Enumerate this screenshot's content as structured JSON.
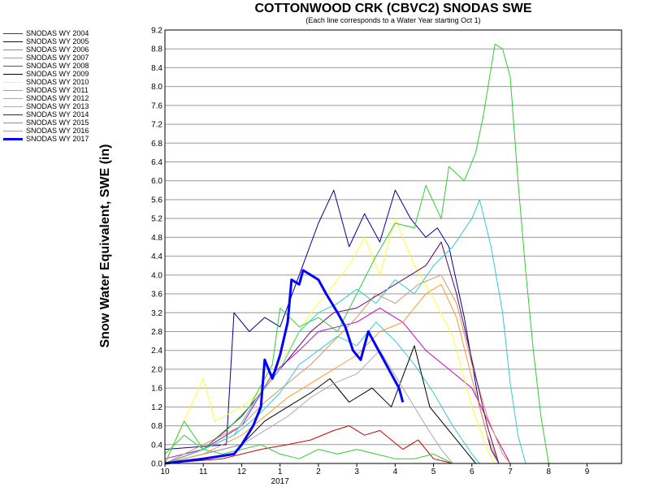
{
  "chart_data": {
    "type": "line",
    "title": "COTTONWOOD CRK (CBVC2) SNODAS SWE",
    "subtitle": "(Each line corresponds to a Water Year starting Oct 1)",
    "ylabel": "Snow Water Equivalent, SWE (in)",
    "xlabel": "",
    "year_label": "2017",
    "ylim": [
      0,
      9.2
    ],
    "xlim": [
      10,
      21.9
    ],
    "yticks": [
      "0.0",
      "0.4",
      "0.8",
      "1.2",
      "1.6",
      "2.0",
      "2.4",
      "2.8",
      "3.2",
      "3.6",
      "4.0",
      "4.4",
      "4.8",
      "5.2",
      "5.6",
      "6.0",
      "6.4",
      "6.8",
      "7.2",
      "7.6",
      "8.0",
      "8.4",
      "8.8",
      "9.2"
    ],
    "xticks": [
      "10",
      "11",
      "12",
      "1",
      "2",
      "3",
      "4",
      "5",
      "6",
      "7",
      "8",
      "9"
    ],
    "grid": true,
    "legend_position": "left",
    "series": [
      {
        "name": "SNODAS WY 2004",
        "color": "#cc0000",
        "width": 1,
        "points": [
          [
            10,
            0
          ],
          [
            11.5,
            0.1
          ],
          [
            12.5,
            0.3
          ],
          [
            13.2,
            0.4
          ],
          [
            13.8,
            0.5
          ],
          [
            14.4,
            0.7
          ],
          [
            14.8,
            0.8
          ],
          [
            15.2,
            0.6
          ],
          [
            15.6,
            0.7
          ],
          [
            16.2,
            0.3
          ],
          [
            16.6,
            0.5
          ],
          [
            17,
            0.1
          ],
          [
            17.5,
            0
          ]
        ]
      },
      {
        "name": "SNODAS WY 2005",
        "color": "#000099",
        "width": 1,
        "points": [
          [
            10,
            0.3
          ],
          [
            11.6,
            0.4
          ],
          [
            11.8,
            3.2
          ],
          [
            12.2,
            2.8
          ],
          [
            12.6,
            3.1
          ],
          [
            13,
            2.9
          ],
          [
            13.5,
            4.0
          ],
          [
            14,
            5.1
          ],
          [
            14.4,
            5.8
          ],
          [
            14.8,
            4.6
          ],
          [
            15.2,
            5.3
          ],
          [
            15.6,
            4.7
          ],
          [
            16,
            5.8
          ],
          [
            16.4,
            5.2
          ],
          [
            16.8,
            4.8
          ],
          [
            17.1,
            5.0
          ],
          [
            17.4,
            4.6
          ],
          [
            17.8,
            3.1
          ],
          [
            18.2,
            1.2
          ],
          [
            18.5,
            0.3
          ],
          [
            18.7,
            0
          ]
        ]
      },
      {
        "name": "SNODAS WY 2006",
        "color": "#33cc33",
        "width": 1,
        "points": [
          [
            10,
            0.2
          ],
          [
            10.5,
            0.6
          ],
          [
            11,
            0.3
          ],
          [
            11.5,
            0.2
          ],
          [
            12,
            0.3
          ],
          [
            12.5,
            0.4
          ],
          [
            13,
            0.2
          ],
          [
            13.5,
            0.1
          ],
          [
            14,
            0.3
          ],
          [
            14.5,
            0.2
          ],
          [
            15,
            0.3
          ],
          [
            15.5,
            0.2
          ],
          [
            16,
            0.1
          ],
          [
            16.5,
            0.1
          ],
          [
            17,
            0.2
          ],
          [
            17.5,
            0
          ]
        ]
      },
      {
        "name": "SNODAS WY 2007",
        "color": "#33cccc",
        "width": 1,
        "points": [
          [
            10,
            0
          ],
          [
            11,
            0.3
          ],
          [
            11.8,
            0.6
          ],
          [
            12.4,
            1.0
          ],
          [
            13,
            1.5
          ],
          [
            13.5,
            2.1
          ],
          [
            14,
            2.4
          ],
          [
            14.5,
            2.7
          ],
          [
            15,
            2.5
          ],
          [
            15.5,
            3.0
          ],
          [
            16,
            2.6
          ],
          [
            16.5,
            2.1
          ],
          [
            17,
            1.5
          ],
          [
            17.5,
            0.8
          ],
          [
            18,
            0.2
          ],
          [
            18.2,
            0
          ]
        ]
      },
      {
        "name": "SNODAS WY 2008",
        "color": "#cc00cc",
        "width": 1,
        "points": [
          [
            10,
            0.1
          ],
          [
            11,
            0.3
          ],
          [
            12,
            0.8
          ],
          [
            12.8,
            1.9
          ],
          [
            13.5,
            2.4
          ],
          [
            14,
            2.8
          ],
          [
            14.5,
            2.9
          ],
          [
            15,
            3.0
          ],
          [
            15.6,
            3.3
          ],
          [
            16.2,
            3.0
          ],
          [
            16.8,
            2.4
          ],
          [
            17.4,
            2.0
          ],
          [
            18,
            1.6
          ],
          [
            18.6,
            0.6
          ],
          [
            19,
            0
          ]
        ]
      },
      {
        "name": "SNODAS WY 2009",
        "color": "#000000",
        "width": 1,
        "points": [
          [
            10,
            0
          ],
          [
            11,
            0.2
          ],
          [
            12,
            0.4
          ],
          [
            12.6,
            0.9
          ],
          [
            13.2,
            1.2
          ],
          [
            13.8,
            1.5
          ],
          [
            14.3,
            1.8
          ],
          [
            14.8,
            1.3
          ],
          [
            15.4,
            1.6
          ],
          [
            15.9,
            1.2
          ],
          [
            16.5,
            2.5
          ],
          [
            16.9,
            1.2
          ],
          [
            17.3,
            0.8
          ],
          [
            17.8,
            0.3
          ],
          [
            18.1,
            0
          ]
        ]
      },
      {
        "name": "SNODAS WY 2010",
        "color": "#ffff33",
        "width": 1,
        "points": [
          [
            10,
            0
          ],
          [
            11,
            1.8
          ],
          [
            11.3,
            0.9
          ],
          [
            12,
            1.2
          ],
          [
            12.6,
            1.6
          ],
          [
            13.2,
            2.4
          ],
          [
            13.8,
            3.2
          ],
          [
            14.4,
            3.8
          ],
          [
            14.8,
            4.2
          ],
          [
            15.2,
            4.8
          ],
          [
            15.6,
            4.0
          ],
          [
            16,
            5.2
          ],
          [
            16.5,
            4.2
          ],
          [
            17,
            3.5
          ],
          [
            17.5,
            2.7
          ],
          [
            18,
            1.2
          ],
          [
            18.4,
            0.3
          ],
          [
            18.6,
            0
          ]
        ]
      },
      {
        "name": "SNODAS WY 2011",
        "color": "#cc9966",
        "width": 1,
        "points": [
          [
            10,
            0
          ],
          [
            11,
            0.4
          ],
          [
            12,
            0.8
          ],
          [
            12.6,
            1.3
          ],
          [
            13.2,
            1.7
          ],
          [
            13.8,
            2.1
          ],
          [
            14.4,
            2.6
          ],
          [
            15,
            3.1
          ],
          [
            15.5,
            3.6
          ],
          [
            16,
            3.4
          ],
          [
            16.6,
            3.8
          ],
          [
            17.2,
            4.0
          ],
          [
            17.6,
            3.4
          ],
          [
            18,
            2.1
          ],
          [
            18.4,
            1.0
          ],
          [
            18.8,
            0.2
          ],
          [
            19,
            0
          ]
        ]
      },
      {
        "name": "SNODAS WY 2012",
        "color": "#aaaaaa",
        "width": 1,
        "points": [
          [
            10,
            0
          ],
          [
            11,
            0.2
          ],
          [
            12,
            0.4
          ],
          [
            12.6,
            0.7
          ],
          [
            13.2,
            1.0
          ],
          [
            13.8,
            1.4
          ],
          [
            14.4,
            1.7
          ],
          [
            15,
            1.9
          ],
          [
            15.6,
            2.4
          ],
          [
            16.2,
            1.6
          ],
          [
            16.8,
            0.8
          ],
          [
            17.2,
            0.3
          ],
          [
            17.5,
            0
          ]
        ]
      },
      {
        "name": "SNODAS WY 2013",
        "color": "#ff9933",
        "width": 1,
        "points": [
          [
            10,
            0
          ],
          [
            11,
            0.2
          ],
          [
            12,
            0.6
          ],
          [
            12.6,
            1.0
          ],
          [
            13.2,
            1.4
          ],
          [
            13.8,
            1.7
          ],
          [
            14.4,
            2.0
          ],
          [
            15,
            2.3
          ],
          [
            15.6,
            2.8
          ],
          [
            16.2,
            3.0
          ],
          [
            16.8,
            3.6
          ],
          [
            17.2,
            3.8
          ],
          [
            17.6,
            3.1
          ],
          [
            18,
            1.8
          ],
          [
            18.4,
            0.6
          ],
          [
            18.7,
            0
          ]
        ]
      },
      {
        "name": "SNODAS WY 2014",
        "color": "#660066",
        "width": 1,
        "points": [
          [
            10,
            0
          ],
          [
            11,
            0.3
          ],
          [
            12,
            1.0
          ],
          [
            12.6,
            1.6
          ],
          [
            13.2,
            2.2
          ],
          [
            13.8,
            2.8
          ],
          [
            14.4,
            3.2
          ],
          [
            15,
            3.3
          ],
          [
            15.6,
            3.6
          ],
          [
            16.2,
            3.9
          ],
          [
            16.8,
            4.2
          ],
          [
            17.2,
            4.7
          ],
          [
            17.6,
            3.6
          ],
          [
            18,
            2.2
          ],
          [
            18.4,
            0.8
          ],
          [
            18.7,
            0
          ]
        ]
      },
      {
        "name": "SNODAS WY 2015",
        "color": "#33cc33",
        "width": 1,
        "points": [
          [
            10,
            0
          ],
          [
            10.5,
            0.9
          ],
          [
            11,
            0.3
          ],
          [
            11.6,
            0.7
          ],
          [
            12.2,
            1.2
          ],
          [
            12.8,
            2.1
          ],
          [
            13,
            3.3
          ],
          [
            13.5,
            2.9
          ],
          [
            14,
            3.1
          ],
          [
            14.5,
            2.8
          ],
          [
            15,
            3.6
          ],
          [
            15.5,
            4.4
          ],
          [
            16,
            5.1
          ],
          [
            16.5,
            5.0
          ],
          [
            16.8,
            5.9
          ],
          [
            17.2,
            5.2
          ],
          [
            17.4,
            6.3
          ],
          [
            17.8,
            6.0
          ],
          [
            18.1,
            6.6
          ],
          [
            18.3,
            7.4
          ],
          [
            18.6,
            8.9
          ],
          [
            18.8,
            8.8
          ],
          [
            19,
            8.2
          ],
          [
            19.2,
            6.0
          ],
          [
            19.4,
            4.1
          ],
          [
            19.6,
            2.4
          ],
          [
            19.8,
            1.0
          ],
          [
            20,
            0
          ]
        ]
      },
      {
        "name": "SNODAS WY 2016",
        "color": "#33cccc",
        "width": 1,
        "points": [
          [
            10,
            0
          ],
          [
            11,
            0.3
          ],
          [
            11.8,
            0.6
          ],
          [
            12.4,
            1.4
          ],
          [
            13,
            2.0
          ],
          [
            13.5,
            2.8
          ],
          [
            14,
            3.2
          ],
          [
            14.5,
            3.4
          ],
          [
            15,
            3.7
          ],
          [
            15.5,
            3.4
          ],
          [
            16,
            3.9
          ],
          [
            16.5,
            3.6
          ],
          [
            17,
            4.2
          ],
          [
            17.5,
            4.6
          ],
          [
            18,
            5.2
          ],
          [
            18.2,
            5.6
          ],
          [
            18.5,
            4.6
          ],
          [
            18.8,
            3.2
          ],
          [
            19,
            1.7
          ],
          [
            19.2,
            0.6
          ],
          [
            19.4,
            0
          ]
        ]
      },
      {
        "name": "SNODAS WY 2017",
        "color": "#0000ff",
        "width": 3,
        "points": [
          [
            10,
            0
          ],
          [
            11,
            0.1
          ],
          [
            11.8,
            0.2
          ],
          [
            12,
            0.4
          ],
          [
            12.3,
            0.8
          ],
          [
            12.5,
            1.2
          ],
          [
            12.6,
            2.2
          ],
          [
            12.8,
            1.8
          ],
          [
            13,
            2.3
          ],
          [
            13.2,
            3.0
          ],
          [
            13.3,
            3.9
          ],
          [
            13.5,
            3.8
          ],
          [
            13.6,
            4.1
          ],
          [
            13.8,
            4.0
          ],
          [
            14,
            3.9
          ],
          [
            14.2,
            3.6
          ],
          [
            14.5,
            3.2
          ],
          [
            14.7,
            2.9
          ],
          [
            14.9,
            2.4
          ],
          [
            15.1,
            2.2
          ],
          [
            15.3,
            2.8
          ],
          [
            15.5,
            2.5
          ],
          [
            15.7,
            2.2
          ],
          [
            15.9,
            1.9
          ],
          [
            16.1,
            1.6
          ],
          [
            16.2,
            1.3
          ]
        ]
      }
    ]
  }
}
